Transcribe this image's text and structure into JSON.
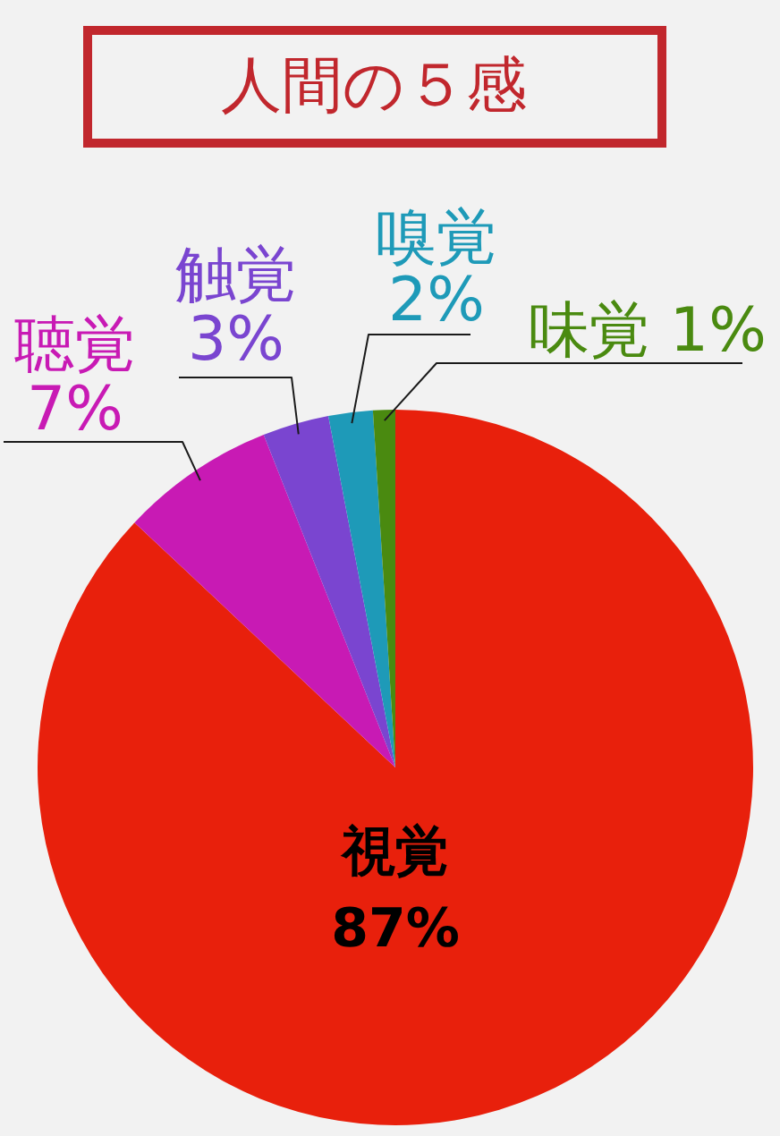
{
  "chart_data": {
    "type": "pie",
    "title": "人間の５感",
    "categories": [
      "視覚",
      "聴覚",
      "触覚",
      "嗅覚",
      "味覚"
    ],
    "values": [
      87,
      7,
      3,
      2,
      1
    ],
    "colors": [
      "#e8200c",
      "#c81ab4",
      "#7a45d0",
      "#1e9ab8",
      "#4a8a10"
    ],
    "value_labels": [
      "87%",
      "7%",
      "3%",
      "2%",
      "1%"
    ]
  }
}
